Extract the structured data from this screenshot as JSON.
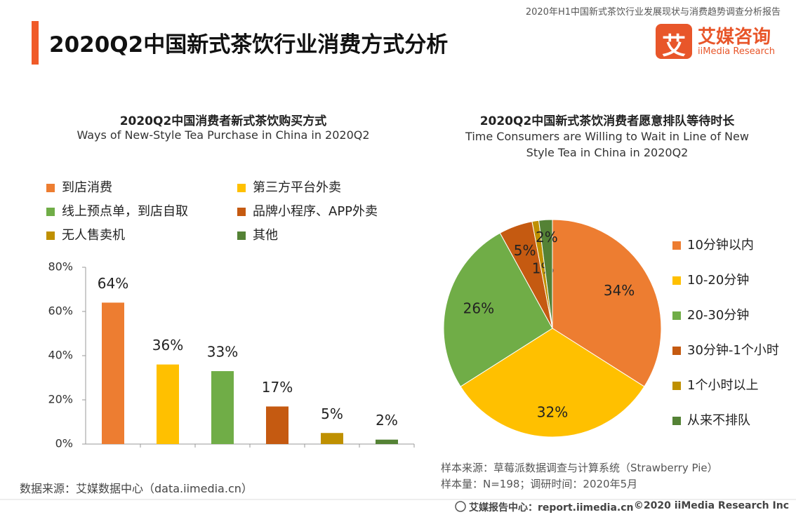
{
  "header": {
    "report_title": "2020年H1中国新式茶饮行业发展现状与消费趋势调查分析报告",
    "title": "2020Q2中国新式茶饮行业消费方式分析",
    "logo_mark": "艾",
    "logo_cn": "艾媒咨询",
    "logo_en": "iiMedia Research"
  },
  "chart_data": [
    {
      "type": "bar",
      "title": "2020Q2中国消费者新式茶饮购买方式",
      "subtitle": "Ways of New-Style Tea Purchase in China in 2020Q2",
      "categories": [
        "到店消费",
        "第三方平台外卖",
        "线上预点单，到店自取",
        "品牌小程序、APP外卖",
        "无人售卖机",
        "其他"
      ],
      "values": [
        64,
        36,
        33,
        17,
        5,
        2
      ],
      "value_labels": [
        "64%",
        "36%",
        "33%",
        "17%",
        "5%",
        "2%"
      ],
      "colors": [
        "#ED7D31",
        "#FFC000",
        "#70AD47",
        "#C55A11",
        "#BF9000",
        "#548235"
      ],
      "ylim": [
        0,
        80
      ],
      "yticks": [
        {
          "value": 0,
          "label": "0%"
        },
        {
          "value": 20,
          "label": "20%"
        },
        {
          "value": 40,
          "label": "40%"
        },
        {
          "value": 60,
          "label": "60%"
        },
        {
          "value": 80,
          "label": "80%"
        }
      ],
      "source": "数据来源：艾媒数据中心（data.iimedia.cn）"
    },
    {
      "type": "pie",
      "title": "2020Q2中国新式茶饮消费者愿意排队等待时长",
      "subtitle": "Time Consumers are Willing to Wait in Line of New Style Tea in China in 2020Q2",
      "categories": [
        "10分钟以内",
        "10-20分钟",
        "20-30分钟",
        "30分钟-1个小时",
        "1个小时以上",
        "从来不排队"
      ],
      "values": [
        34,
        32,
        26,
        5,
        1,
        2
      ],
      "value_labels": [
        "34%",
        "32%",
        "26%",
        "5%",
        "1%",
        "2%"
      ],
      "colors": [
        "#ED7D31",
        "#FFC000",
        "#70AD47",
        "#C55A11",
        "#BF9000",
        "#548235"
      ],
      "source": [
        "样本来源：草莓派数据调查与计算系统（Strawberry Pie）",
        "样本量：N=198；调研时间：2020年5月"
      ]
    }
  ],
  "footer": {
    "site": "艾媒报告中心：report.iimedia.cn",
    "copyright": "©2020  iiMedia Research  Inc"
  }
}
